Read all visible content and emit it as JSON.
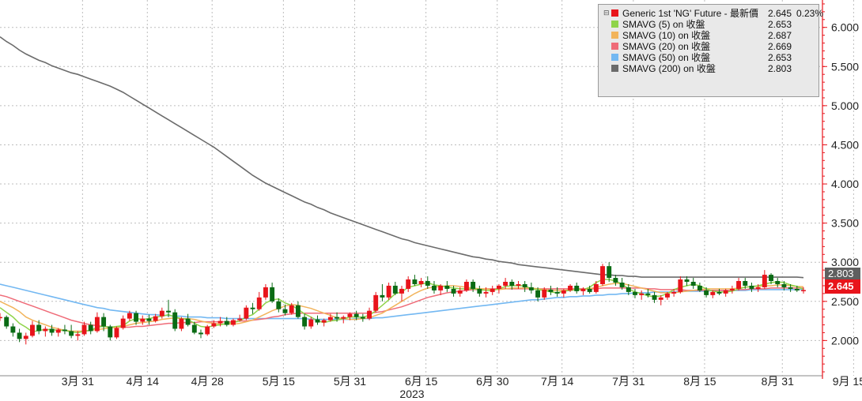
{
  "chart_data": {
    "type": "candlestick",
    "year_label": "2023",
    "x_ticks": [
      "3月 31",
      "4月 14",
      "4月 28",
      "5月 15",
      "5月 31",
      "6月 15",
      "6月 30",
      "7月 14",
      "7月 31",
      "8月 15",
      "8月 31",
      "9月 15"
    ],
    "y_ticks": [
      "2.000",
      "2.500",
      "3.000",
      "3.500",
      "4.000",
      "4.500",
      "5.000",
      "5.500",
      "6.000"
    ],
    "ylim": [
      1.55,
      6.35
    ],
    "grid": true,
    "legend_placement": "top-right",
    "colors": {
      "up": "#e8141b",
      "down": "#0a6b14",
      "sma5": "#8fd44a",
      "sma10": "#f2b45c",
      "sma20": "#ef6b78",
      "sma50": "#73b8f2",
      "sma200": "#6b6b6b",
      "axis": "#e8141b"
    },
    "legend": [
      {
        "name": "Generic 1st 'NG' Future - 最新價",
        "value": "2.645",
        "pct": "0.23%",
        "color": "#e8141b"
      },
      {
        "name": "SMAVG (5)  on 收盤",
        "value": "2.653",
        "color": "#8fd44a"
      },
      {
        "name": "SMAVG (10)  on 收盤",
        "value": "2.687",
        "color": "#f2b45c"
      },
      {
        "name": "SMAVG (20)  on 收盤",
        "value": "2.669",
        "color": "#ef6b78"
      },
      {
        "name": "SMAVG (50)  on 收盤",
        "value": "2.653",
        "color": "#73b8f2"
      },
      {
        "name": "SMAVG (200)  on 收盤",
        "value": "2.803",
        "color": "#6b6b6b"
      }
    ],
    "last_price_label": "2.645",
    "sma200_label": "2.803",
    "tick_indices": [
      7,
      17,
      27,
      38,
      49,
      60,
      71,
      81,
      92,
      103,
      115,
      126
    ],
    "candles": [
      [
        2.3,
        2.35,
        2.25,
        2.3
      ],
      [
        2.3,
        2.32,
        2.15,
        2.18
      ],
      [
        2.18,
        2.22,
        2.05,
        2.1
      ],
      [
        2.1,
        2.15,
        1.98,
        2.02
      ],
      [
        2.02,
        2.1,
        1.95,
        2.06
      ],
      [
        2.06,
        2.25,
        2.04,
        2.2
      ],
      [
        2.2,
        2.26,
        2.08,
        2.12
      ],
      [
        2.12,
        2.18,
        2.05,
        2.15
      ],
      [
        2.15,
        2.2,
        2.06,
        2.1
      ],
      [
        2.1,
        2.16,
        2.05,
        2.14
      ],
      [
        2.14,
        2.2,
        2.08,
        2.12
      ],
      [
        2.12,
        2.2,
        2.03,
        2.06
      ],
      [
        2.06,
        2.12,
        2.0,
        2.08
      ],
      [
        2.08,
        2.24,
        2.06,
        2.2
      ],
      [
        2.2,
        2.24,
        2.08,
        2.12
      ],
      [
        2.12,
        2.36,
        2.1,
        2.3
      ],
      [
        2.3,
        2.35,
        2.12,
        2.18
      ],
      [
        2.18,
        2.2,
        2.0,
        2.04
      ],
      [
        2.04,
        2.18,
        2.02,
        2.16
      ],
      [
        2.16,
        2.32,
        2.14,
        2.28
      ],
      [
        2.28,
        2.38,
        2.25,
        2.35
      ],
      [
        2.35,
        2.38,
        2.2,
        2.24
      ],
      [
        2.24,
        2.32,
        2.2,
        2.28
      ],
      [
        2.28,
        2.33,
        2.2,
        2.25
      ],
      [
        2.25,
        2.34,
        2.23,
        2.31
      ],
      [
        2.31,
        2.42,
        2.28,
        2.38
      ],
      [
        2.38,
        2.52,
        2.3,
        2.36
      ],
      [
        2.36,
        2.4,
        2.12,
        2.15
      ],
      [
        2.15,
        2.3,
        2.12,
        2.28
      ],
      [
        2.28,
        2.34,
        2.18,
        2.2
      ],
      [
        2.2,
        2.24,
        2.08,
        2.1
      ],
      [
        2.1,
        2.14,
        2.03,
        2.08
      ],
      [
        2.08,
        2.2,
        2.06,
        2.18
      ],
      [
        2.18,
        2.26,
        2.16,
        2.22
      ],
      [
        2.22,
        2.3,
        2.18,
        2.25
      ],
      [
        2.25,
        2.3,
        2.18,
        2.2
      ],
      [
        2.2,
        2.28,
        2.18,
        2.26
      ],
      [
        2.26,
        2.33,
        2.24,
        2.28
      ],
      [
        2.28,
        2.45,
        2.26,
        2.42
      ],
      [
        2.42,
        2.48,
        2.34,
        2.4
      ],
      [
        2.4,
        2.62,
        2.38,
        2.55
      ],
      [
        2.55,
        2.72,
        2.52,
        2.68
      ],
      [
        2.68,
        2.74,
        2.48,
        2.5
      ],
      [
        2.5,
        2.54,
        2.36,
        2.4
      ],
      [
        2.4,
        2.46,
        2.32,
        2.35
      ],
      [
        2.35,
        2.48,
        2.33,
        2.45
      ],
      [
        2.45,
        2.5,
        2.28,
        2.3
      ],
      [
        2.3,
        2.34,
        2.14,
        2.18
      ],
      [
        2.18,
        2.3,
        2.15,
        2.27
      ],
      [
        2.27,
        2.32,
        2.2,
        2.23
      ],
      [
        2.23,
        2.28,
        2.18,
        2.26
      ],
      [
        2.26,
        2.34,
        2.24,
        2.3
      ],
      [
        2.3,
        2.36,
        2.24,
        2.28
      ],
      [
        2.28,
        2.32,
        2.22,
        2.3
      ],
      [
        2.3,
        2.36,
        2.26,
        2.34
      ],
      [
        2.34,
        2.38,
        2.26,
        2.3
      ],
      [
        2.3,
        2.34,
        2.24,
        2.28
      ],
      [
        2.28,
        2.42,
        2.26,
        2.38
      ],
      [
        2.38,
        2.62,
        2.36,
        2.58
      ],
      [
        2.58,
        2.72,
        2.5,
        2.55
      ],
      [
        2.55,
        2.74,
        2.52,
        2.7
      ],
      [
        2.7,
        2.75,
        2.58,
        2.6
      ],
      [
        2.6,
        2.7,
        2.5,
        2.66
      ],
      [
        2.66,
        2.82,
        2.62,
        2.78
      ],
      [
        2.78,
        2.84,
        2.7,
        2.72
      ],
      [
        2.72,
        2.8,
        2.68,
        2.76
      ],
      [
        2.76,
        2.82,
        2.66,
        2.7
      ],
      [
        2.7,
        2.76,
        2.6,
        2.64
      ],
      [
        2.64,
        2.72,
        2.58,
        2.7
      ],
      [
        2.7,
        2.76,
        2.62,
        2.66
      ],
      [
        2.66,
        2.7,
        2.56,
        2.6
      ],
      [
        2.6,
        2.68,
        2.56,
        2.64
      ],
      [
        2.64,
        2.78,
        2.62,
        2.75
      ],
      [
        2.75,
        2.78,
        2.62,
        2.66
      ],
      [
        2.66,
        2.7,
        2.56,
        2.6
      ],
      [
        2.6,
        2.68,
        2.55,
        2.62
      ],
      [
        2.62,
        2.7,
        2.58,
        2.66
      ],
      [
        2.66,
        2.72,
        2.6,
        2.7
      ],
      [
        2.7,
        2.8,
        2.66,
        2.75
      ],
      [
        2.75,
        2.78,
        2.65,
        2.7
      ],
      [
        2.7,
        2.76,
        2.66,
        2.72
      ],
      [
        2.72,
        2.76,
        2.62,
        2.68
      ],
      [
        2.68,
        2.74,
        2.6,
        2.64
      ],
      [
        2.64,
        2.68,
        2.5,
        2.55
      ],
      [
        2.55,
        2.68,
        2.52,
        2.65
      ],
      [
        2.65,
        2.7,
        2.58,
        2.62
      ],
      [
        2.62,
        2.68,
        2.56,
        2.6
      ],
      [
        2.6,
        2.66,
        2.55,
        2.64
      ],
      [
        2.64,
        2.72,
        2.62,
        2.7
      ],
      [
        2.7,
        2.74,
        2.6,
        2.63
      ],
      [
        2.63,
        2.68,
        2.58,
        2.66
      ],
      [
        2.66,
        2.7,
        2.6,
        2.62
      ],
      [
        2.62,
        2.76,
        2.6,
        2.72
      ],
      [
        2.72,
        2.98,
        2.7,
        2.95
      ],
      [
        2.95,
        3.0,
        2.75,
        2.8
      ],
      [
        2.8,
        2.84,
        2.7,
        2.74
      ],
      [
        2.74,
        2.8,
        2.65,
        2.68
      ],
      [
        2.68,
        2.72,
        2.58,
        2.62
      ],
      [
        2.62,
        2.66,
        2.54,
        2.58
      ],
      [
        2.58,
        2.64,
        2.52,
        2.6
      ],
      [
        2.6,
        2.66,
        2.55,
        2.58
      ],
      [
        2.58,
        2.62,
        2.48,
        2.52
      ],
      [
        2.52,
        2.58,
        2.45,
        2.55
      ],
      [
        2.55,
        2.62,
        2.52,
        2.6
      ],
      [
        2.6,
        2.66,
        2.56,
        2.62
      ],
      [
        2.62,
        2.82,
        2.6,
        2.78
      ],
      [
        2.78,
        2.82,
        2.7,
        2.75
      ],
      [
        2.75,
        2.8,
        2.66,
        2.7
      ],
      [
        2.7,
        2.74,
        2.62,
        2.64
      ],
      [
        2.64,
        2.68,
        2.55,
        2.58
      ],
      [
        2.58,
        2.64,
        2.54,
        2.62
      ],
      [
        2.62,
        2.66,
        2.58,
        2.6
      ],
      [
        2.6,
        2.66,
        2.56,
        2.64
      ],
      [
        2.64,
        2.7,
        2.6,
        2.66
      ],
      [
        2.66,
        2.8,
        2.64,
        2.76
      ],
      [
        2.76,
        2.8,
        2.66,
        2.7
      ],
      [
        2.7,
        2.74,
        2.62,
        2.66
      ],
      [
        2.66,
        2.72,
        2.62,
        2.68
      ],
      [
        2.68,
        2.9,
        2.66,
        2.84
      ],
      [
        2.84,
        2.86,
        2.72,
        2.76
      ],
      [
        2.76,
        2.8,
        2.68,
        2.72
      ],
      [
        2.72,
        2.76,
        2.64,
        2.68
      ],
      [
        2.68,
        2.72,
        2.62,
        2.66
      ],
      [
        2.66,
        2.7,
        2.62,
        2.64
      ],
      [
        2.64,
        2.68,
        2.6,
        2.645
      ]
    ],
    "sma5": [
      2.42,
      2.36,
      2.3,
      2.22,
      2.17,
      2.11,
      2.13,
      2.14,
      2.14,
      2.13,
      2.13,
      2.11,
      2.1,
      2.12,
      2.13,
      2.17,
      2.18,
      2.17,
      2.18,
      2.19,
      2.25,
      2.28,
      2.27,
      2.28,
      2.3,
      2.31,
      2.33,
      2.3,
      2.28,
      2.27,
      2.22,
      2.18,
      2.17,
      2.19,
      2.2,
      2.22,
      2.23,
      2.25,
      2.3,
      2.33,
      2.4,
      2.48,
      2.52,
      2.53,
      2.48,
      2.45,
      2.4,
      2.34,
      2.3,
      2.25,
      2.23,
      2.25,
      2.26,
      2.28,
      2.3,
      2.3,
      2.3,
      2.32,
      2.38,
      2.45,
      2.52,
      2.6,
      2.62,
      2.68,
      2.7,
      2.72,
      2.74,
      2.71,
      2.7,
      2.68,
      2.67,
      2.66,
      2.66,
      2.66,
      2.65,
      2.64,
      2.64,
      2.66,
      2.69,
      2.7,
      2.7,
      2.7,
      2.66,
      2.65,
      2.64,
      2.62,
      2.61,
      2.63,
      2.64,
      2.65,
      2.65,
      2.68,
      2.74,
      2.78,
      2.78,
      2.76,
      2.72,
      2.66,
      2.62,
      2.6,
      2.57,
      2.56,
      2.57,
      2.6,
      2.65,
      2.68,
      2.7,
      2.72,
      2.7,
      2.66,
      2.63,
      2.62,
      2.62,
      2.63,
      2.66,
      2.68,
      2.69,
      2.7,
      2.72,
      2.74,
      2.75,
      2.74,
      2.71,
      2.69,
      2.653
    ],
    "sma10": [
      2.5,
      2.46,
      2.42,
      2.37,
      2.3,
      2.26,
      2.23,
      2.2,
      2.17,
      2.15,
      2.13,
      2.12,
      2.12,
      2.12,
      2.13,
      2.14,
      2.15,
      2.16,
      2.17,
      2.18,
      2.2,
      2.22,
      2.23,
      2.24,
      2.25,
      2.27,
      2.28,
      2.29,
      2.28,
      2.28,
      2.27,
      2.25,
      2.23,
      2.22,
      2.21,
      2.21,
      2.21,
      2.22,
      2.24,
      2.26,
      2.3,
      2.34,
      2.38,
      2.41,
      2.44,
      2.46,
      2.45,
      2.43,
      2.41,
      2.38,
      2.35,
      2.32,
      2.29,
      2.28,
      2.27,
      2.27,
      2.28,
      2.29,
      2.32,
      2.35,
      2.4,
      2.45,
      2.5,
      2.55,
      2.6,
      2.64,
      2.67,
      2.68,
      2.69,
      2.7,
      2.7,
      2.69,
      2.68,
      2.67,
      2.66,
      2.66,
      2.65,
      2.65,
      2.66,
      2.67,
      2.67,
      2.67,
      2.67,
      2.66,
      2.65,
      2.64,
      2.64,
      2.64,
      2.65,
      2.65,
      2.65,
      2.66,
      2.68,
      2.7,
      2.72,
      2.73,
      2.73,
      2.71,
      2.69,
      2.67,
      2.65,
      2.63,
      2.61,
      2.61,
      2.61,
      2.62,
      2.63,
      2.64,
      2.65,
      2.66,
      2.66,
      2.66,
      2.66,
      2.66,
      2.67,
      2.68,
      2.69,
      2.69,
      2.7,
      2.7,
      2.71,
      2.71,
      2.7,
      2.69,
      2.687
    ],
    "sma20": [
      2.58,
      2.56,
      2.53,
      2.5,
      2.47,
      2.44,
      2.41,
      2.38,
      2.35,
      2.32,
      2.29,
      2.26,
      2.24,
      2.22,
      2.2,
      2.19,
      2.18,
      2.17,
      2.17,
      2.17,
      2.17,
      2.18,
      2.18,
      2.19,
      2.2,
      2.21,
      2.22,
      2.22,
      2.23,
      2.23,
      2.23,
      2.24,
      2.24,
      2.24,
      2.24,
      2.24,
      2.24,
      2.25,
      2.25,
      2.26,
      2.27,
      2.28,
      2.3,
      2.31,
      2.33,
      2.34,
      2.35,
      2.35,
      2.35,
      2.35,
      2.35,
      2.35,
      2.35,
      2.35,
      2.35,
      2.35,
      2.35,
      2.35,
      2.36,
      2.37,
      2.39,
      2.41,
      2.43,
      2.46,
      2.49,
      2.52,
      2.55,
      2.57,
      2.59,
      2.61,
      2.62,
      2.63,
      2.64,
      2.65,
      2.65,
      2.66,
      2.66,
      2.66,
      2.66,
      2.66,
      2.66,
      2.66,
      2.66,
      2.66,
      2.66,
      2.66,
      2.66,
      2.66,
      2.66,
      2.66,
      2.66,
      2.66,
      2.66,
      2.67,
      2.67,
      2.67,
      2.67,
      2.67,
      2.67,
      2.67,
      2.66,
      2.66,
      2.65,
      2.65,
      2.65,
      2.65,
      2.64,
      2.64,
      2.64,
      2.64,
      2.64,
      2.64,
      2.64,
      2.64,
      2.65,
      2.65,
      2.66,
      2.66,
      2.66,
      2.67,
      2.67,
      2.67,
      2.67,
      2.67,
      2.669
    ],
    "sma50": [
      2.72,
      2.7,
      2.68,
      2.66,
      2.64,
      2.62,
      2.6,
      2.58,
      2.56,
      2.54,
      2.52,
      2.5,
      2.48,
      2.46,
      2.44,
      2.42,
      2.41,
      2.39,
      2.38,
      2.37,
      2.36,
      2.35,
      2.34,
      2.33,
      2.33,
      2.32,
      2.32,
      2.31,
      2.31,
      2.3,
      2.3,
      2.3,
      2.29,
      2.29,
      2.29,
      2.28,
      2.28,
      2.28,
      2.28,
      2.28,
      2.28,
      2.28,
      2.28,
      2.28,
      2.28,
      2.28,
      2.28,
      2.28,
      2.27,
      2.27,
      2.27,
      2.27,
      2.27,
      2.27,
      2.27,
      2.28,
      2.28,
      2.28,
      2.29,
      2.29,
      2.3,
      2.31,
      2.32,
      2.33,
      2.34,
      2.35,
      2.36,
      2.37,
      2.38,
      2.39,
      2.4,
      2.41,
      2.42,
      2.43,
      2.44,
      2.45,
      2.46,
      2.47,
      2.48,
      2.49,
      2.5,
      2.51,
      2.52,
      2.52,
      2.53,
      2.54,
      2.55,
      2.55,
      2.56,
      2.56,
      2.57,
      2.57,
      2.58,
      2.58,
      2.59,
      2.59,
      2.6,
      2.6,
      2.61,
      2.61,
      2.61,
      2.62,
      2.62,
      2.62,
      2.62,
      2.63,
      2.63,
      2.63,
      2.63,
      2.63,
      2.64,
      2.64,
      2.64,
      2.64,
      2.64,
      2.64,
      2.65,
      2.65,
      2.65,
      2.65,
      2.65,
      2.65,
      2.65,
      2.65,
      2.653
    ],
    "sma200": [
      5.88,
      5.82,
      5.77,
      5.71,
      5.66,
      5.62,
      5.58,
      5.55,
      5.51,
      5.48,
      5.45,
      5.42,
      5.4,
      5.37,
      5.34,
      5.31,
      5.28,
      5.25,
      5.21,
      5.17,
      5.12,
      5.07,
      5.02,
      4.97,
      4.92,
      4.87,
      4.82,
      4.77,
      4.72,
      4.67,
      4.62,
      4.57,
      4.52,
      4.47,
      4.41,
      4.35,
      4.29,
      4.23,
      4.17,
      4.11,
      4.06,
      4.01,
      3.97,
      3.93,
      3.89,
      3.85,
      3.81,
      3.77,
      3.74,
      3.7,
      3.67,
      3.63,
      3.6,
      3.57,
      3.54,
      3.51,
      3.48,
      3.45,
      3.42,
      3.39,
      3.36,
      3.33,
      3.3,
      3.28,
      3.25,
      3.23,
      3.21,
      3.19,
      3.17,
      3.15,
      3.13,
      3.11,
      3.09,
      3.07,
      3.06,
      3.04,
      3.03,
      3.01,
      3.0,
      2.99,
      2.97,
      2.96,
      2.95,
      2.94,
      2.93,
      2.92,
      2.91,
      2.9,
      2.89,
      2.88,
      2.87,
      2.86,
      2.85,
      2.84,
      2.84,
      2.83,
      2.83,
      2.82,
      2.82,
      2.81,
      2.81,
      2.81,
      2.81,
      2.81,
      2.81,
      2.81,
      2.81,
      2.81,
      2.81,
      2.81,
      2.81,
      2.81,
      2.81,
      2.81,
      2.81,
      2.81,
      2.81,
      2.81,
      2.81,
      2.81,
      2.81,
      2.81,
      2.81,
      2.81,
      2.803
    ]
  }
}
